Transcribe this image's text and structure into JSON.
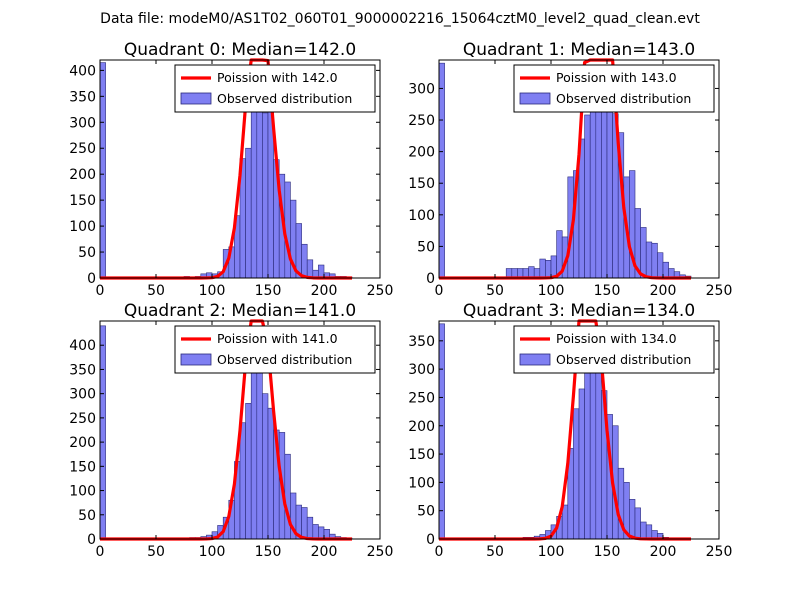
{
  "figure": {
    "title": "Data file: modeM0/AS1T02_060T01_9000002216_15064cztM0_level2_quad_clean.evt"
  },
  "legend": {
    "observed_label": "Observed distribution"
  },
  "colors": {
    "bar_fill": "#7f7ff2",
    "bar_edge": "#2a2a7a",
    "poisson_line": "#ff0000"
  },
  "chart_data": [
    {
      "type": "bar",
      "title": "Quadrant 0: Median=142.0",
      "poisson_label": "Poission with 142.0",
      "median": 142.0,
      "xlim": [
        0,
        250
      ],
      "ylim": [
        0,
        420
      ],
      "xticks": [
        0,
        50,
        100,
        150,
        200,
        250
      ],
      "yticks": [
        0,
        50,
        100,
        150,
        200,
        250,
        300,
        350,
        400
      ],
      "bin_width": 5,
      "bins": [
        {
          "x": 0,
          "h": 415
        },
        {
          "x": 70,
          "h": 2
        },
        {
          "x": 75,
          "h": 3
        },
        {
          "x": 80,
          "h": 2
        },
        {
          "x": 85,
          "h": 3
        },
        {
          "x": 90,
          "h": 8
        },
        {
          "x": 95,
          "h": 10
        },
        {
          "x": 100,
          "h": 8
        },
        {
          "x": 105,
          "h": 12
        },
        {
          "x": 110,
          "h": 55
        },
        {
          "x": 115,
          "h": 60
        },
        {
          "x": 120,
          "h": 120
        },
        {
          "x": 125,
          "h": 230
        },
        {
          "x": 130,
          "h": 250
        },
        {
          "x": 135,
          "h": 375
        },
        {
          "x": 140,
          "h": 390
        },
        {
          "x": 145,
          "h": 318
        },
        {
          "x": 150,
          "h": 330
        },
        {
          "x": 155,
          "h": 228
        },
        {
          "x": 160,
          "h": 200
        },
        {
          "x": 165,
          "h": 185
        },
        {
          "x": 170,
          "h": 150
        },
        {
          "x": 175,
          "h": 105
        },
        {
          "x": 180,
          "h": 65
        },
        {
          "x": 185,
          "h": 35
        },
        {
          "x": 190,
          "h": 15
        },
        {
          "x": 195,
          "h": 25
        },
        {
          "x": 200,
          "h": 10
        },
        {
          "x": 205,
          "h": 8
        },
        {
          "x": 210,
          "h": 3
        },
        {
          "x": 215,
          "h": 3
        },
        {
          "x": 220,
          "h": 2
        }
      ]
    },
    {
      "type": "bar",
      "title": "Quadrant 1: Median=143.0",
      "poisson_label": "Poission with 143.0",
      "median": 143.0,
      "xlim": [
        0,
        250
      ],
      "ylim": [
        0,
        345
      ],
      "xticks": [
        0,
        50,
        100,
        150,
        200,
        250
      ],
      "yticks": [
        0,
        50,
        100,
        150,
        200,
        250,
        300
      ],
      "bin_width": 5,
      "bins": [
        {
          "x": 0,
          "h": 340
        },
        {
          "x": 60,
          "h": 15
        },
        {
          "x": 65,
          "h": 15
        },
        {
          "x": 70,
          "h": 15
        },
        {
          "x": 75,
          "h": 15
        },
        {
          "x": 80,
          "h": 18
        },
        {
          "x": 85,
          "h": 15
        },
        {
          "x": 90,
          "h": 30
        },
        {
          "x": 95,
          "h": 28
        },
        {
          "x": 100,
          "h": 35
        },
        {
          "x": 105,
          "h": 75
        },
        {
          "x": 110,
          "h": 65
        },
        {
          "x": 115,
          "h": 160
        },
        {
          "x": 120,
          "h": 170
        },
        {
          "x": 125,
          "h": 220
        },
        {
          "x": 130,
          "h": 258
        },
        {
          "x": 135,
          "h": 280
        },
        {
          "x": 140,
          "h": 325
        },
        {
          "x": 145,
          "h": 330
        },
        {
          "x": 150,
          "h": 300
        },
        {
          "x": 155,
          "h": 260
        },
        {
          "x": 160,
          "h": 230
        },
        {
          "x": 165,
          "h": 160
        },
        {
          "x": 170,
          "h": 170
        },
        {
          "x": 175,
          "h": 110
        },
        {
          "x": 180,
          "h": 80
        },
        {
          "x": 185,
          "h": 57
        },
        {
          "x": 190,
          "h": 55
        },
        {
          "x": 195,
          "h": 40
        },
        {
          "x": 200,
          "h": 25
        },
        {
          "x": 205,
          "h": 15
        },
        {
          "x": 210,
          "h": 10
        },
        {
          "x": 215,
          "h": 5
        },
        {
          "x": 220,
          "h": 3
        }
      ]
    },
    {
      "type": "bar",
      "title": "Quadrant 2: Median=141.0",
      "poisson_label": "Poission with 141.0",
      "median": 141.0,
      "xlim": [
        0,
        250
      ],
      "ylim": [
        0,
        450
      ],
      "xticks": [
        0,
        50,
        100,
        150,
        200,
        250
      ],
      "yticks": [
        0,
        50,
        100,
        150,
        200,
        250,
        300,
        350,
        400
      ],
      "bin_width": 5,
      "bins": [
        {
          "x": 0,
          "h": 440
        },
        {
          "x": 80,
          "h": 3
        },
        {
          "x": 85,
          "h": 3
        },
        {
          "x": 90,
          "h": 5
        },
        {
          "x": 95,
          "h": 8
        },
        {
          "x": 100,
          "h": 15
        },
        {
          "x": 105,
          "h": 28
        },
        {
          "x": 110,
          "h": 45
        },
        {
          "x": 115,
          "h": 80
        },
        {
          "x": 120,
          "h": 160
        },
        {
          "x": 125,
          "h": 240
        },
        {
          "x": 130,
          "h": 280
        },
        {
          "x": 135,
          "h": 405
        },
        {
          "x": 140,
          "h": 400
        },
        {
          "x": 145,
          "h": 300
        },
        {
          "x": 150,
          "h": 270
        },
        {
          "x": 155,
          "h": 225
        },
        {
          "x": 160,
          "h": 220
        },
        {
          "x": 165,
          "h": 175
        },
        {
          "x": 170,
          "h": 95
        },
        {
          "x": 175,
          "h": 70
        },
        {
          "x": 180,
          "h": 65
        },
        {
          "x": 185,
          "h": 45
        },
        {
          "x": 190,
          "h": 30
        },
        {
          "x": 195,
          "h": 25
        },
        {
          "x": 200,
          "h": 20
        },
        {
          "x": 205,
          "h": 10
        },
        {
          "x": 210,
          "h": 5
        },
        {
          "x": 215,
          "h": 3
        },
        {
          "x": 220,
          "h": 2
        }
      ]
    },
    {
      "type": "bar",
      "title": "Quadrant 3: Median=134.0",
      "poisson_label": "Poission with 134.0",
      "median": 134.0,
      "xlim": [
        0,
        250
      ],
      "ylim": [
        0,
        385
      ],
      "xticks": [
        0,
        50,
        100,
        150,
        200,
        250
      ],
      "yticks": [
        0,
        50,
        100,
        150,
        200,
        250,
        300,
        350
      ],
      "bin_width": 5,
      "bins": [
        {
          "x": 0,
          "h": 380
        },
        {
          "x": 75,
          "h": 3
        },
        {
          "x": 80,
          "h": 3
        },
        {
          "x": 85,
          "h": 5
        },
        {
          "x": 90,
          "h": 8
        },
        {
          "x": 95,
          "h": 15
        },
        {
          "x": 100,
          "h": 25
        },
        {
          "x": 105,
          "h": 40
        },
        {
          "x": 110,
          "h": 60
        },
        {
          "x": 115,
          "h": 160
        },
        {
          "x": 120,
          "h": 230
        },
        {
          "x": 125,
          "h": 265
        },
        {
          "x": 130,
          "h": 355
        },
        {
          "x": 135,
          "h": 345
        },
        {
          "x": 140,
          "h": 330
        },
        {
          "x": 145,
          "h": 262
        },
        {
          "x": 150,
          "h": 220
        },
        {
          "x": 155,
          "h": 200
        },
        {
          "x": 160,
          "h": 125
        },
        {
          "x": 165,
          "h": 100
        },
        {
          "x": 170,
          "h": 70
        },
        {
          "x": 175,
          "h": 55
        },
        {
          "x": 180,
          "h": 30
        },
        {
          "x": 185,
          "h": 25
        },
        {
          "x": 190,
          "h": 15
        },
        {
          "x": 195,
          "h": 10
        },
        {
          "x": 200,
          "h": 3
        }
      ]
    }
  ]
}
